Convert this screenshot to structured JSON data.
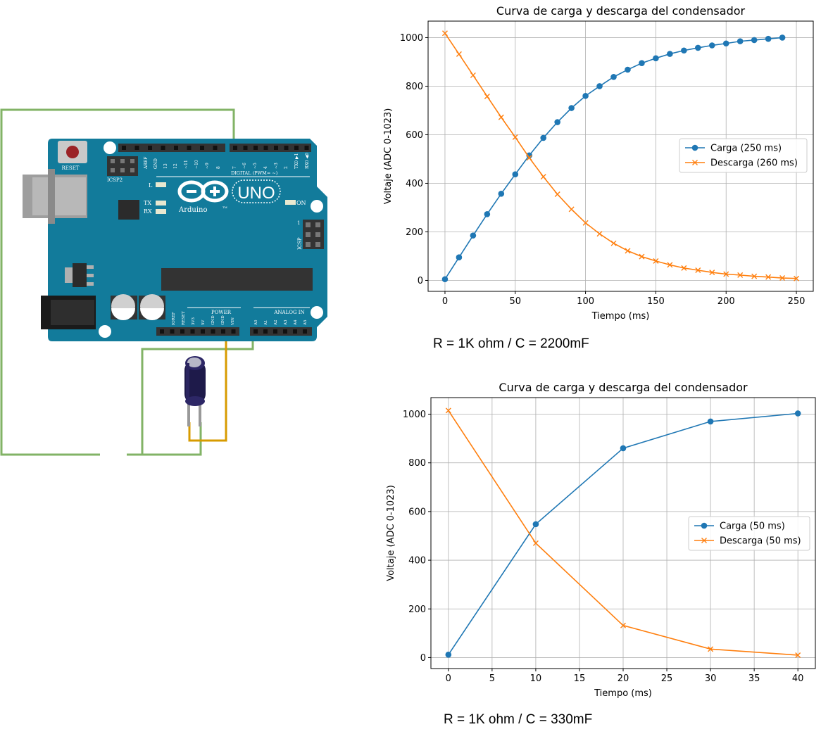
{
  "board": {
    "brand": "Arduino",
    "model": "UNO",
    "reset": "RESET",
    "icsp2": "ICSP2",
    "icsp": "ICSP",
    "led_l": "L",
    "tx": "TX",
    "rx": "RX",
    "on": "ON",
    "digital": "DIGITAL (PWM= ~)",
    "power": "POWER",
    "analog": "ANALOG IN",
    "tm": "TM",
    "digital_pins": [
      "AREF",
      "GND",
      "13",
      "12",
      "~11",
      "~10",
      "~9",
      "8",
      "7",
      "~6",
      "~5",
      "4",
      "~3",
      "2",
      "TX0 ▶1",
      "RX0 ◀0"
    ],
    "power_pins": [
      "IOREF",
      "RESET",
      "3V3",
      "5V",
      "GND",
      "GND",
      "VIN"
    ],
    "analog_pins": [
      "A0",
      "A1",
      "A2",
      "A3",
      "A4",
      "A5"
    ],
    "icsp_pin": "1"
  },
  "captions": {
    "chart1": "R = 1K ohm / C = 2200mF",
    "chart2": "R = 1K ohm / C = 330mF"
  },
  "chart_data": [
    {
      "type": "line",
      "title": "Curva de carga y descarga del condensador",
      "xlabel": "Tiempo (ms)",
      "ylabel": "Voltaje (ADC 0-1023)",
      "xlim": [
        -12,
        262
      ],
      "ylim": [
        -45,
        1068
      ],
      "xticks": [
        0,
        50,
        100,
        150,
        200,
        250
      ],
      "yticks": [
        0,
        200,
        400,
        600,
        800,
        1000
      ],
      "grid": true,
      "legend_position": "center-right",
      "series": [
        {
          "name": "Carga (250 ms)",
          "color": "#1f77b4",
          "marker": "circle",
          "x": [
            0,
            10,
            20,
            30,
            40,
            50,
            60,
            70,
            80,
            90,
            100,
            110,
            120,
            130,
            140,
            150,
            160,
            170,
            180,
            190,
            200,
            210,
            220,
            230,
            240
          ],
          "y": [
            5,
            95,
            185,
            273,
            357,
            437,
            515,
            587,
            652,
            710,
            760,
            800,
            838,
            868,
            895,
            915,
            933,
            947,
            958,
            968,
            976,
            985,
            990,
            995,
            1000
          ]
        },
        {
          "name": "Descarga (260 ms)",
          "color": "#ff7f0e",
          "marker": "x",
          "x": [
            0,
            10,
            20,
            30,
            40,
            50,
            60,
            70,
            80,
            90,
            100,
            110,
            120,
            130,
            140,
            150,
            160,
            170,
            180,
            190,
            200,
            210,
            220,
            230,
            240,
            250
          ],
          "y": [
            1018,
            932,
            845,
            758,
            672,
            590,
            505,
            427,
            355,
            293,
            237,
            192,
            153,
            122,
            98,
            80,
            64,
            51,
            42,
            33,
            26,
            22,
            17,
            14,
            10,
            8
          ]
        }
      ]
    },
    {
      "type": "line",
      "title": "Curva de carga y descarga del condensador",
      "xlabel": "Tiempo (ms)",
      "ylabel": "Voltaje (ADC 0-1023)",
      "xlim": [
        -2,
        42
      ],
      "ylim": [
        -45,
        1068
      ],
      "xticks": [
        0,
        5,
        10,
        15,
        20,
        25,
        30,
        35,
        40
      ],
      "yticks": [
        0,
        200,
        400,
        600,
        800,
        1000
      ],
      "grid": true,
      "legend_position": "center-right",
      "series": [
        {
          "name": "Carga (50 ms)",
          "color": "#1f77b4",
          "marker": "circle",
          "x": [
            0,
            10,
            20,
            30,
            40
          ],
          "y": [
            12,
            548,
            860,
            970,
            1003
          ]
        },
        {
          "name": "Descarga (50 ms)",
          "color": "#ff7f0e",
          "marker": "x",
          "x": [
            0,
            10,
            20,
            30,
            40
          ],
          "y": [
            1015,
            470,
            132,
            35,
            10
          ]
        }
      ]
    }
  ]
}
